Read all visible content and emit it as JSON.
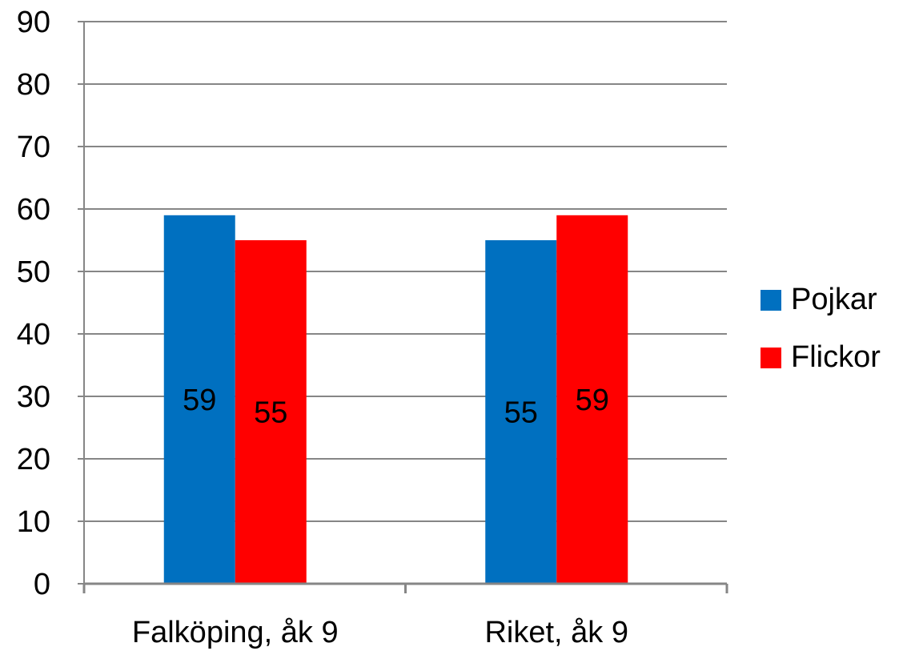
{
  "chart_data": {
    "type": "bar",
    "categories": [
      "Falköping, åk 9",
      "Riket, åk 9"
    ],
    "series": [
      {
        "name": "Pojkar",
        "values": [
          59,
          55
        ],
        "color": "#0070C0"
      },
      {
        "name": "Flickor",
        "values": [
          55,
          59
        ],
        "color": "#FF0000"
      }
    ],
    "title": "",
    "xlabel": "",
    "ylabel": "",
    "ylim": [
      0,
      90
    ],
    "yticks": [
      0,
      10,
      20,
      30,
      40,
      50,
      60,
      70,
      80,
      90
    ],
    "grid": true,
    "legend": "right",
    "data_labels": true,
    "colors": {
      "grid": "#868686",
      "axis": "#868686"
    }
  }
}
